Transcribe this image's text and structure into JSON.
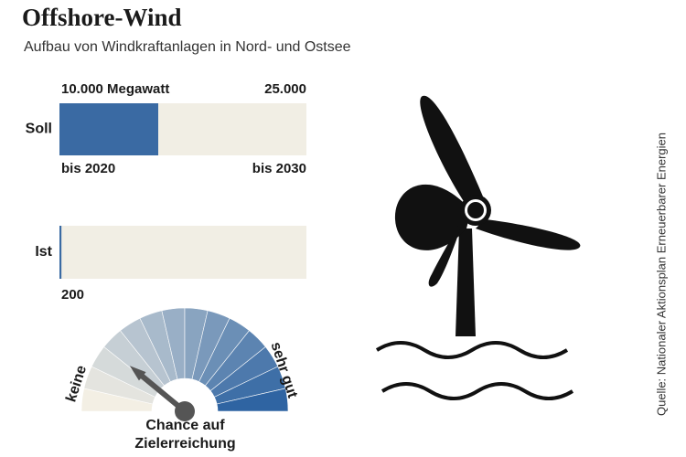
{
  "chart_data": [
    {
      "type": "bar",
      "orientation": "horizontal",
      "title": "Offshore-Wind",
      "subtitle": "Aufbau von Windkraftanlagen in Nord- und Ostsee",
      "categories": [
        "Soll",
        "Ist"
      ],
      "values": [
        10000,
        200
      ],
      "value_labels": [
        "10.000 Megawatt",
        "200"
      ],
      "xlim": [
        0,
        25000
      ],
      "xticks": [
        {
          "value": 25000,
          "label": "25.000"
        }
      ],
      "period_labels": [
        "bis 2020",
        "bis 2030"
      ],
      "color": "#3a6aa3",
      "track_color": "#f1eee4",
      "source": "Quelle: Nationaler Aktionsplan Erneuerbarer Energien"
    },
    {
      "type": "gauge",
      "title": "Chance auf Zielerreichung",
      "min_label": "keine",
      "max_label": "sehr gut",
      "range": [
        0,
        100
      ],
      "value": 22,
      "colors": [
        "#f3efe4",
        "#2f64a2"
      ],
      "needle_color": "#555555"
    }
  ]
}
